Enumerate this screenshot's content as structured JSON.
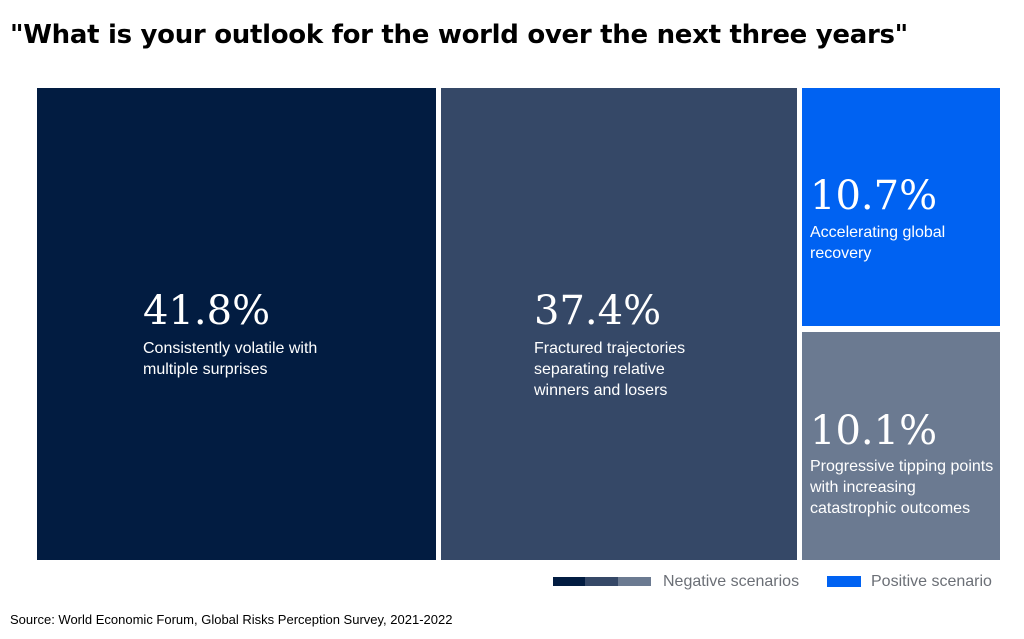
{
  "title": "\"What is your outlook for the world over the next three years\"",
  "source": "Source: World Economic Forum, Global Risks Perception Survey, 2021-2022",
  "colors": {
    "volatile": "#021c41",
    "fractured": "#354867",
    "positive": "#0062f2",
    "tipping": "#6b7a91"
  },
  "chart_data": {
    "type": "treemap",
    "title": "\"What is your outlook for the world over the next three years\"",
    "unit": "%",
    "items": [
      {
        "value": 41.8,
        "value_label": "41.8%",
        "label": "Consistently volatile with multiple surprises",
        "group": "Negative scenarios",
        "color": "#021c41"
      },
      {
        "value": 37.4,
        "value_label": "37.4%",
        "label": "Fractured trajectories separating relative winners and losers",
        "group": "Negative scenarios",
        "color": "#354867"
      },
      {
        "value": 10.7,
        "value_label": "10.7%",
        "label": "Accelerating global recovery",
        "group": "Positive scenario",
        "color": "#0062f2"
      },
      {
        "value": 10.1,
        "value_label": "10.1%",
        "label": "Progressive tipping points with increasing catastrophic outcomes",
        "group": "Negative scenarios",
        "color": "#6b7a91"
      }
    ],
    "legend": {
      "placement": "bottom-right",
      "entries": [
        {
          "label": "Negative scenarios",
          "colors": [
            "#021c41",
            "#354867",
            "#6b7a91"
          ]
        },
        {
          "label": "Positive scenario",
          "colors": [
            "#0062f2"
          ]
        }
      ]
    }
  }
}
